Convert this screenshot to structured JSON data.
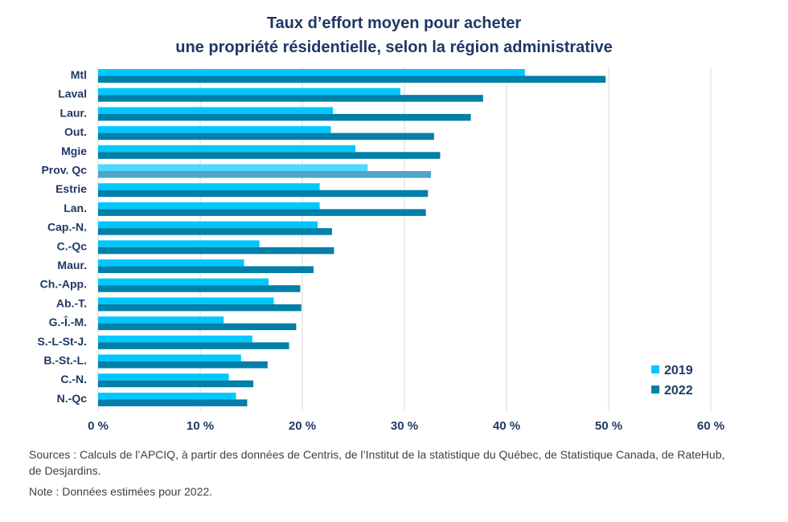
{
  "title_line1": "Taux d’effort moyen pour acheter",
  "title_line2": "une propriété résidentielle, selon la région administrative",
  "sources": "Sources : Calculs de l’APCIQ, à partir des données de Centris, de l’Institut de la statistique du Québec, de Statistique Canada, de RateHub, de Desjardins.",
  "note": "Note : Données estimées pour 2022.",
  "colors": {
    "s2019": "#00C8FF",
    "s2022": "#007FA8",
    "hl2019": "#4DD8FF",
    "hl2022": "#4FA6C6",
    "text": "#1f3864",
    "grid": "#d9d9d9"
  },
  "chart_data": {
    "type": "bar",
    "orientation": "horizontal",
    "title": "Taux d’effort moyen pour acheter une propriété résidentielle, selon la région administrative",
    "xlabel": "",
    "ylabel": "",
    "xlim": [
      0,
      60
    ],
    "xticks": [
      0,
      10,
      20,
      30,
      40,
      50,
      60
    ],
    "xtick_labels": [
      "0 %",
      "10 %",
      "20 %",
      "30 %",
      "40 %",
      "50 %",
      "60 %"
    ],
    "grid": true,
    "legend_position": "bottom-right",
    "highlight_category": "Prov. Qc",
    "categories": [
      "Mtl",
      "Laval",
      "Laur.",
      "Out.",
      "Mgie",
      "Prov. Qc",
      "Estrie",
      "Lan.",
      "Cap.-N.",
      "C.-Qc",
      "Maur.",
      "Ch.-App.",
      "Ab.-T.",
      "G.-Î.-M.",
      "S.-L-St-J.",
      "B.-St.-L.",
      "C.-N.",
      "N.-Qc"
    ],
    "series": [
      {
        "name": "2019",
        "values": [
          41.8,
          29.6,
          23.0,
          22.8,
          25.2,
          26.4,
          21.7,
          21.7,
          21.5,
          15.8,
          14.3,
          16.7,
          17.2,
          12.3,
          15.1,
          14.0,
          12.8,
          13.5
        ]
      },
      {
        "name": "2022",
        "values": [
          49.7,
          37.7,
          36.5,
          32.9,
          33.5,
          32.6,
          32.3,
          32.1,
          22.9,
          23.1,
          21.1,
          19.8,
          19.9,
          19.4,
          18.7,
          16.6,
          15.2,
          14.6
        ]
      }
    ]
  }
}
